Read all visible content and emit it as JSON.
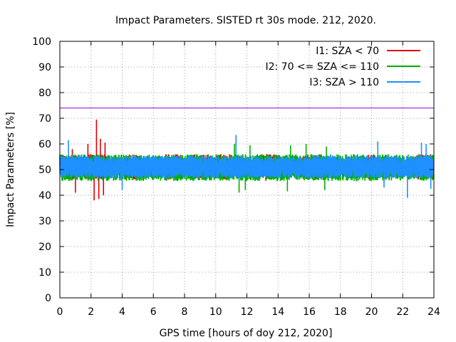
{
  "chart_data": {
    "type": "line",
    "title": "Impact Parameters. SISTED rt 30s mode. 212, 2020.",
    "xlabel": "GPS time [hours of doy 212, 2020]",
    "ylabel": "Impact Parameters [%]",
    "xlim": [
      0,
      24
    ],
    "ylim": [
      0,
      100
    ],
    "xticks": [
      0,
      2,
      4,
      6,
      8,
      10,
      12,
      14,
      16,
      18,
      20,
      22,
      24
    ],
    "yticks": [
      0,
      10,
      20,
      30,
      40,
      50,
      60,
      70,
      80,
      90,
      100
    ],
    "grid": true,
    "legend_position": "top-right",
    "threshold": {
      "value": 74,
      "color": "#9400d3"
    },
    "series": [
      {
        "name": "I1: SZA < 70",
        "color": "#e00000",
        "segments": [
          [
            0,
            1.2
          ],
          [
            1.6,
            3.1
          ],
          [
            4.2,
            5.3
          ],
          [
            6.8,
            8.0
          ],
          [
            8.6,
            11.0
          ],
          [
            13.0,
            14.0
          ],
          [
            15.6,
            16.8
          ],
          [
            19.8,
            21.0
          ],
          [
            22.8,
            24.0
          ]
        ],
        "band": [
          46,
          56
        ],
        "extremes": [
          {
            "x": 2.35,
            "y": 69.5
          },
          {
            "x": 2.2,
            "y": 38
          },
          {
            "x": 2.5,
            "y": 38.5
          },
          {
            "x": 2.8,
            "y": 40
          },
          {
            "x": 1.0,
            "y": 41
          },
          {
            "x": 0.8,
            "y": 58
          },
          {
            "x": 1.8,
            "y": 60
          },
          {
            "x": 2.6,
            "y": 62
          },
          {
            "x": 2.9,
            "y": 60.5
          }
        ]
      },
      {
        "name": "I2: 70 <= SZA <= 110",
        "color": "#00b000",
        "segments": [
          [
            0,
            24
          ]
        ],
        "band": [
          45.5,
          56
        ],
        "extremes": [
          {
            "x": 11.5,
            "y": 41
          },
          {
            "x": 11.9,
            "y": 42
          },
          {
            "x": 14.6,
            "y": 41.5
          },
          {
            "x": 17.0,
            "y": 42
          },
          {
            "x": 11.2,
            "y": 60
          },
          {
            "x": 12.2,
            "y": 59.5
          },
          {
            "x": 14.8,
            "y": 59.5
          },
          {
            "x": 15.8,
            "y": 60
          },
          {
            "x": 17.1,
            "y": 59
          }
        ]
      },
      {
        "name": "I3: SZA > 110",
        "color": "#1e90ff",
        "segments": [
          [
            0,
            24
          ]
        ],
        "band": [
          46.5,
          55.5
        ],
        "extremes": [
          {
            "x": 0.55,
            "y": 61.5
          },
          {
            "x": 11.3,
            "y": 63.5
          },
          {
            "x": 20.4,
            "y": 61
          },
          {
            "x": 23.2,
            "y": 60.5
          },
          {
            "x": 23.5,
            "y": 60
          },
          {
            "x": 22.3,
            "y": 39
          },
          {
            "x": 20.8,
            "y": 43
          },
          {
            "x": 4.0,
            "y": 42
          },
          {
            "x": 23.8,
            "y": 42.5
          }
        ]
      }
    ]
  }
}
